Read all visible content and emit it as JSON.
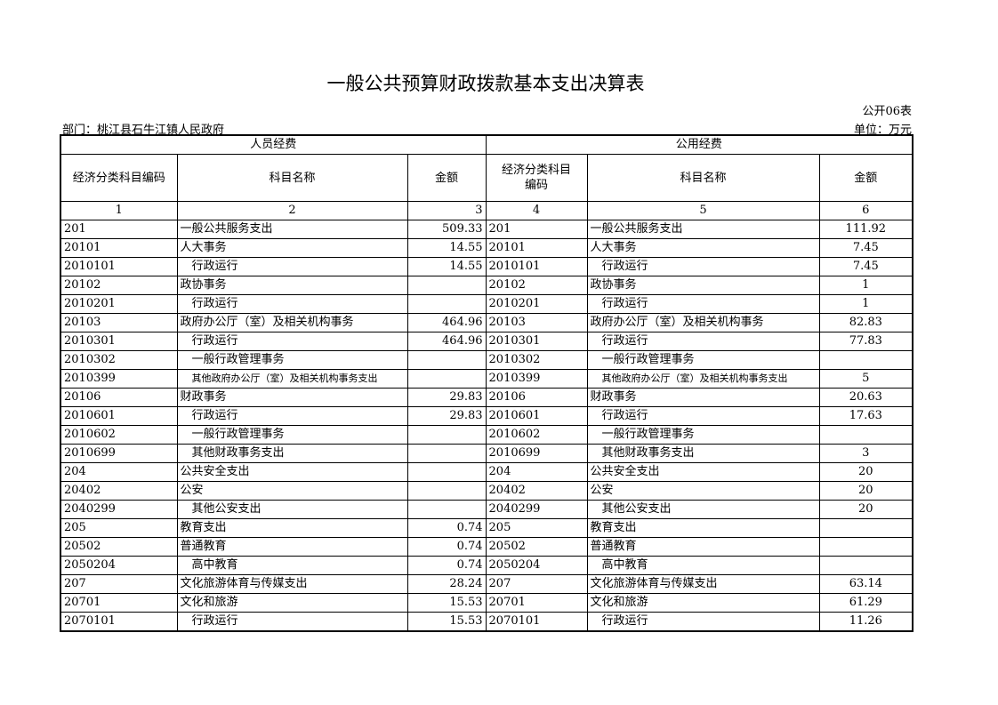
{
  "title": "一般公共预算财政拨款基本支出决算表",
  "form_no": "公开06表",
  "department": "部门：桃江县石牛江镇人民政府",
  "unit": "单位：万元",
  "groups": {
    "personnel": "人员经费",
    "public": "公用经费"
  },
  "headers": {
    "code_left": "经济分类科目编码",
    "name": "科目名称",
    "amount": "金额",
    "code_right": "经济分类科目编码"
  },
  "col_numbers": [
    "1",
    "2",
    "3",
    "4",
    "5",
    "6"
  ],
  "rows": [
    {
      "code": "201",
      "name": "一般公共服务支出",
      "amt": "509.33",
      "code2": "201",
      "name2": "一般公共服务支出",
      "amt2": "111.92",
      "indent": false
    },
    {
      "code": "20101",
      "name": "人大事务",
      "amt": "14.55",
      "code2": "20101",
      "name2": "人大事务",
      "amt2": "7.45",
      "indent": false
    },
    {
      "code": "2010101",
      "name": "行政运行",
      "amt": "14.55",
      "code2": "2010101",
      "name2": "行政运行",
      "amt2": "7.45",
      "indent": true
    },
    {
      "code": "20102",
      "name": "政协事务",
      "amt": "",
      "code2": "20102",
      "name2": "政协事务",
      "amt2": "1",
      "indent": false
    },
    {
      "code": "2010201",
      "name": "行政运行",
      "amt": "",
      "code2": "2010201",
      "name2": "行政运行",
      "amt2": "1",
      "indent": true
    },
    {
      "code": "20103",
      "name": "政府办公厅（室）及相关机构事务",
      "amt": "464.96",
      "code2": "20103",
      "name2": "政府办公厅（室）及相关机构事务",
      "amt2": "82.83",
      "indent": false
    },
    {
      "code": "2010301",
      "name": "行政运行",
      "amt": "464.96",
      "code2": "2010301",
      "name2": "行政运行",
      "amt2": "77.83",
      "indent": true
    },
    {
      "code": "2010302",
      "name": "一般行政管理事务",
      "amt": "",
      "code2": "2010302",
      "name2": "一般行政管理事务",
      "amt2": "",
      "indent": true
    },
    {
      "code": "2010399",
      "name": "其他政府办公厅（室）及相关机构事务支出",
      "amt": "",
      "code2": "2010399",
      "name2": "其他政府办公厅（室）及相关机构事务支出",
      "amt2": "5",
      "indent": true,
      "small": true
    },
    {
      "code": "20106",
      "name": "财政事务",
      "amt": "29.83",
      "code2": "20106",
      "name2": "财政事务",
      "amt2": "20.63",
      "indent": false
    },
    {
      "code": "2010601",
      "name": "行政运行",
      "amt": "29.83",
      "code2": "2010601",
      "name2": "行政运行",
      "amt2": "17.63",
      "indent": true
    },
    {
      "code": "2010602",
      "name": "一般行政管理事务",
      "amt": "",
      "code2": "2010602",
      "name2": "一般行政管理事务",
      "amt2": "",
      "indent": true
    },
    {
      "code": "2010699",
      "name": "其他财政事务支出",
      "amt": "",
      "code2": "2010699",
      "name2": "其他财政事务支出",
      "amt2": "3",
      "indent": true
    },
    {
      "code": "204",
      "name": "公共安全支出",
      "amt": "",
      "code2": "204",
      "name2": "公共安全支出",
      "amt2": "20",
      "indent": false
    },
    {
      "code": "20402",
      "name": "公安",
      "amt": "",
      "code2": "20402",
      "name2": "公安",
      "amt2": "20",
      "indent": false
    },
    {
      "code": "2040299",
      "name": "其他公安支出",
      "amt": "",
      "code2": "2040299",
      "name2": "其他公安支出",
      "amt2": "20",
      "indent": true
    },
    {
      "code": "205",
      "name": "教育支出",
      "amt": "0.74",
      "code2": "205",
      "name2": "教育支出",
      "amt2": "",
      "indent": false
    },
    {
      "code": "20502",
      "name": "普通教育",
      "amt": "0.74",
      "code2": "20502",
      "name2": "普通教育",
      "amt2": "",
      "indent": false
    },
    {
      "code": "2050204",
      "name": "高中教育",
      "amt": "0.74",
      "code2": "2050204",
      "name2": "高中教育",
      "amt2": "",
      "indent": true
    },
    {
      "code": "207",
      "name": "文化旅游体育与传媒支出",
      "amt": "28.24",
      "code2": "207",
      "name2": "文化旅游体育与传媒支出",
      "amt2": "63.14",
      "indent": false
    },
    {
      "code": "20701",
      "name": "文化和旅游",
      "amt": "15.53",
      "code2": "20701",
      "name2": "文化和旅游",
      "amt2": "61.29",
      "indent": false
    },
    {
      "code": "2070101",
      "name": "行政运行",
      "amt": "15.53",
      "code2": "2070101",
      "name2": "行政运行",
      "amt2": "11.26",
      "indent": true
    }
  ]
}
